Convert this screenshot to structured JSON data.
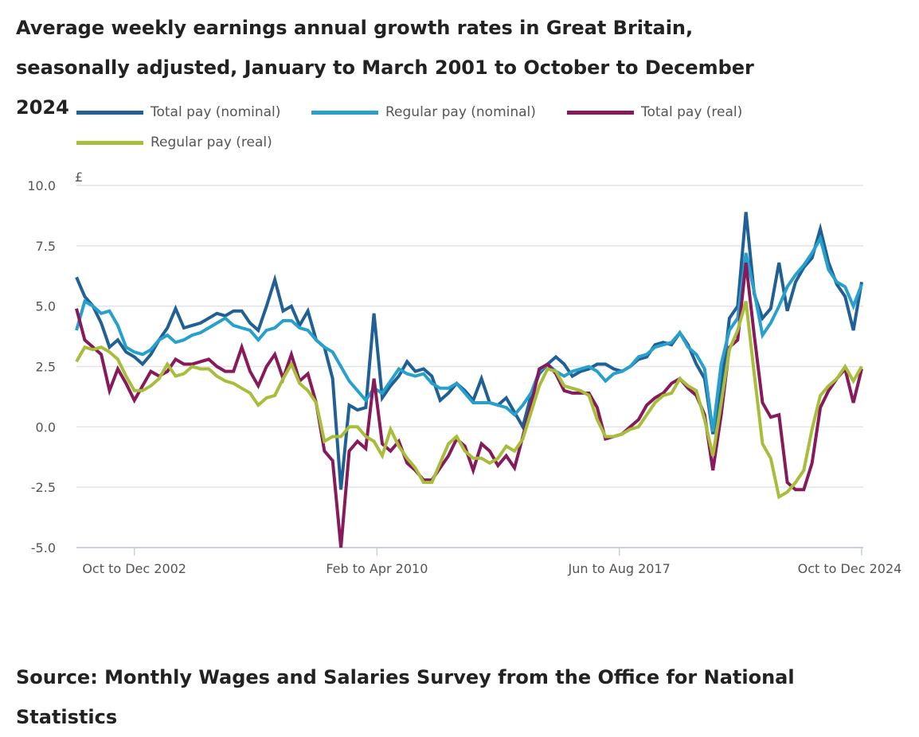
{
  "title": "Average weekly earnings annual growth rates in Great Britain, seasonally adjusted, January to March 2001 to October to December 2024",
  "source": "Source: Monthly Wages and Salaries Survey from the Office for National Statistics",
  "chart_data": {
    "type": "line",
    "title": "Average weekly earnings annual growth rates in Great Britain, seasonally adjusted, January to March 2001 to October to December 2024",
    "ylabel": "£",
    "xlabel": "",
    "ylim": [
      -5,
      10
    ],
    "yticks": [
      "10.0",
      "7.5",
      "5.0",
      "2.5",
      "0.0",
      "-2.5",
      "-5.0"
    ],
    "ytick_values": [
      10,
      7.5,
      5,
      2.5,
      0,
      -2.5,
      -5
    ],
    "xlim": [
      2001.08,
      2024.83
    ],
    "xticks": [
      {
        "label": "Oct to Dec 2002",
        "x": 2002.83
      },
      {
        "label": "Feb to Apr 2010",
        "x": 2010.17
      },
      {
        "label": "Jun to Aug 2017",
        "x": 2017.5
      },
      {
        "label": "Oct to Dec 2024",
        "x": 2024.83
      }
    ],
    "grid": true,
    "legend_position": "top",
    "x_start": 2001.08,
    "x_step": 0.25,
    "series": [
      {
        "name": "Total pay (nominal)",
        "color": "#206095",
        "values": [
          6.2,
          5.4,
          5.0,
          4.3,
          3.3,
          3.6,
          3.1,
          2.9,
          2.6,
          3.0,
          3.6,
          4.1,
          4.9,
          4.1,
          4.2,
          4.3,
          4.5,
          4.7,
          4.6,
          4.8,
          4.8,
          4.3,
          4.0,
          5.0,
          6.1,
          4.8,
          5.0,
          4.2,
          4.8,
          3.6,
          3.3,
          2.0,
          -2.6,
          0.9,
          0.7,
          0.8,
          4.7,
          1.2,
          1.7,
          2.1,
          2.7,
          2.3,
          2.4,
          2.1,
          1.1,
          1.4,
          1.8,
          1.5,
          1.1,
          2.0,
          1.0,
          0.9,
          1.2,
          0.6,
          0.0,
          1.3,
          2.2,
          2.6,
          2.9,
          2.6,
          2.1,
          2.3,
          2.4,
          2.6,
          2.6,
          2.4,
          2.3,
          2.5,
          2.8,
          2.9,
          3.4,
          3.5,
          3.4,
          3.9,
          3.4,
          2.6,
          2.0,
          -0.3,
          1.5,
          4.5,
          5.0,
          8.9,
          5.5,
          4.5,
          4.9,
          6.8,
          4.8,
          6.0,
          6.6,
          7.0,
          8.2,
          6.8,
          5.9,
          5.4,
          4.0,
          6.0
        ]
      },
      {
        "name": "Regular pay (nominal)",
        "color": "#27a0cc",
        "values": [
          4.0,
          5.2,
          5.0,
          4.7,
          4.8,
          4.2,
          3.3,
          3.1,
          3.0,
          3.2,
          3.6,
          3.8,
          3.5,
          3.6,
          3.8,
          3.9,
          4.1,
          4.3,
          4.5,
          4.2,
          4.1,
          4.0,
          3.6,
          4.0,
          4.1,
          4.4,
          4.4,
          4.1,
          4.0,
          3.6,
          3.3,
          3.1,
          2.5,
          1.9,
          1.5,
          1.1,
          1.6,
          1.4,
          1.9,
          2.4,
          2.2,
          2.1,
          2.2,
          1.8,
          1.6,
          1.6,
          1.8,
          1.4,
          1.0,
          1.0,
          1.0,
          0.9,
          0.8,
          0.5,
          0.9,
          1.4,
          2.3,
          2.6,
          2.3,
          2.1,
          2.3,
          2.4,
          2.5,
          2.3,
          1.9,
          2.2,
          2.3,
          2.5,
          2.9,
          3.0,
          3.3,
          3.4,
          3.5,
          3.9,
          3.3,
          3.0,
          2.4,
          -0.2,
          2.6,
          4.0,
          4.5,
          7.2,
          5.6,
          3.8,
          4.3,
          5.0,
          5.8,
          6.3,
          6.7,
          7.2,
          7.8,
          6.5,
          6.0,
          5.8,
          5.0,
          5.9
        ]
      },
      {
        "name": "Total pay (real)",
        "color": "#871a5b",
        "values": [
          4.9,
          3.6,
          3.3,
          3.0,
          1.5,
          2.4,
          1.8,
          1.1,
          1.7,
          2.3,
          2.1,
          2.3,
          2.8,
          2.6,
          2.6,
          2.7,
          2.8,
          2.5,
          2.3,
          2.3,
          3.3,
          2.3,
          1.7,
          2.5,
          3.0,
          2.0,
          3.0,
          1.9,
          2.2,
          1.0,
          -1.0,
          -1.4,
          -5.0,
          -1.0,
          -0.6,
          -0.9,
          2.0,
          -0.7,
          -1.0,
          -0.6,
          -1.5,
          -1.8,
          -2.2,
          -2.2,
          -1.7,
          -1.2,
          -0.5,
          -0.8,
          -1.8,
          -0.7,
          -1.0,
          -1.6,
          -1.2,
          -1.7,
          -0.4,
          0.9,
          2.4,
          2.6,
          2.2,
          1.5,
          1.4,
          1.4,
          1.4,
          0.8,
          -0.5,
          -0.4,
          -0.3,
          0.0,
          0.3,
          0.9,
          1.2,
          1.4,
          1.8,
          2.0,
          1.6,
          1.3,
          0.5,
          -1.8,
          0.5,
          3.3,
          3.6,
          6.8,
          3.8,
          1.0,
          0.4,
          0.5,
          -2.3,
          -2.6,
          -2.6,
          -1.5,
          0.8,
          1.5,
          2.0,
          2.4,
          1.0,
          2.4
        ]
      },
      {
        "name": "Regular pay (real)",
        "color": "#a8bd3a",
        "values": [
          2.7,
          3.3,
          3.2,
          3.3,
          3.1,
          2.8,
          2.1,
          1.5,
          1.5,
          1.7,
          2.0,
          2.6,
          2.1,
          2.2,
          2.5,
          2.4,
          2.4,
          2.1,
          1.9,
          1.8,
          1.6,
          1.4,
          0.9,
          1.2,
          1.3,
          2.0,
          2.6,
          1.8,
          1.5,
          1.0,
          -0.6,
          -0.4,
          -0.4,
          0.0,
          0.0,
          -0.4,
          -0.6,
          -1.2,
          -0.1,
          -0.8,
          -1.3,
          -1.7,
          -2.3,
          -2.3,
          -1.5,
          -0.7,
          -0.4,
          -1.0,
          -1.3,
          -1.3,
          -1.5,
          -1.3,
          -0.8,
          -1.0,
          -0.5,
          0.6,
          1.7,
          2.4,
          2.3,
          1.7,
          1.6,
          1.5,
          1.3,
          0.3,
          -0.4,
          -0.4,
          -0.3,
          -0.1,
          0.0,
          0.5,
          1.0,
          1.3,
          1.4,
          2.0,
          1.7,
          1.5,
          0.3,
          -1.2,
          1.0,
          3.2,
          4.0,
          5.2,
          2.2,
          -0.7,
          -1.3,
          -2.9,
          -2.7,
          -2.3,
          -1.8,
          -0.1,
          1.3,
          1.7,
          2.0,
          2.5,
          1.9,
          2.5
        ]
      }
    ]
  }
}
